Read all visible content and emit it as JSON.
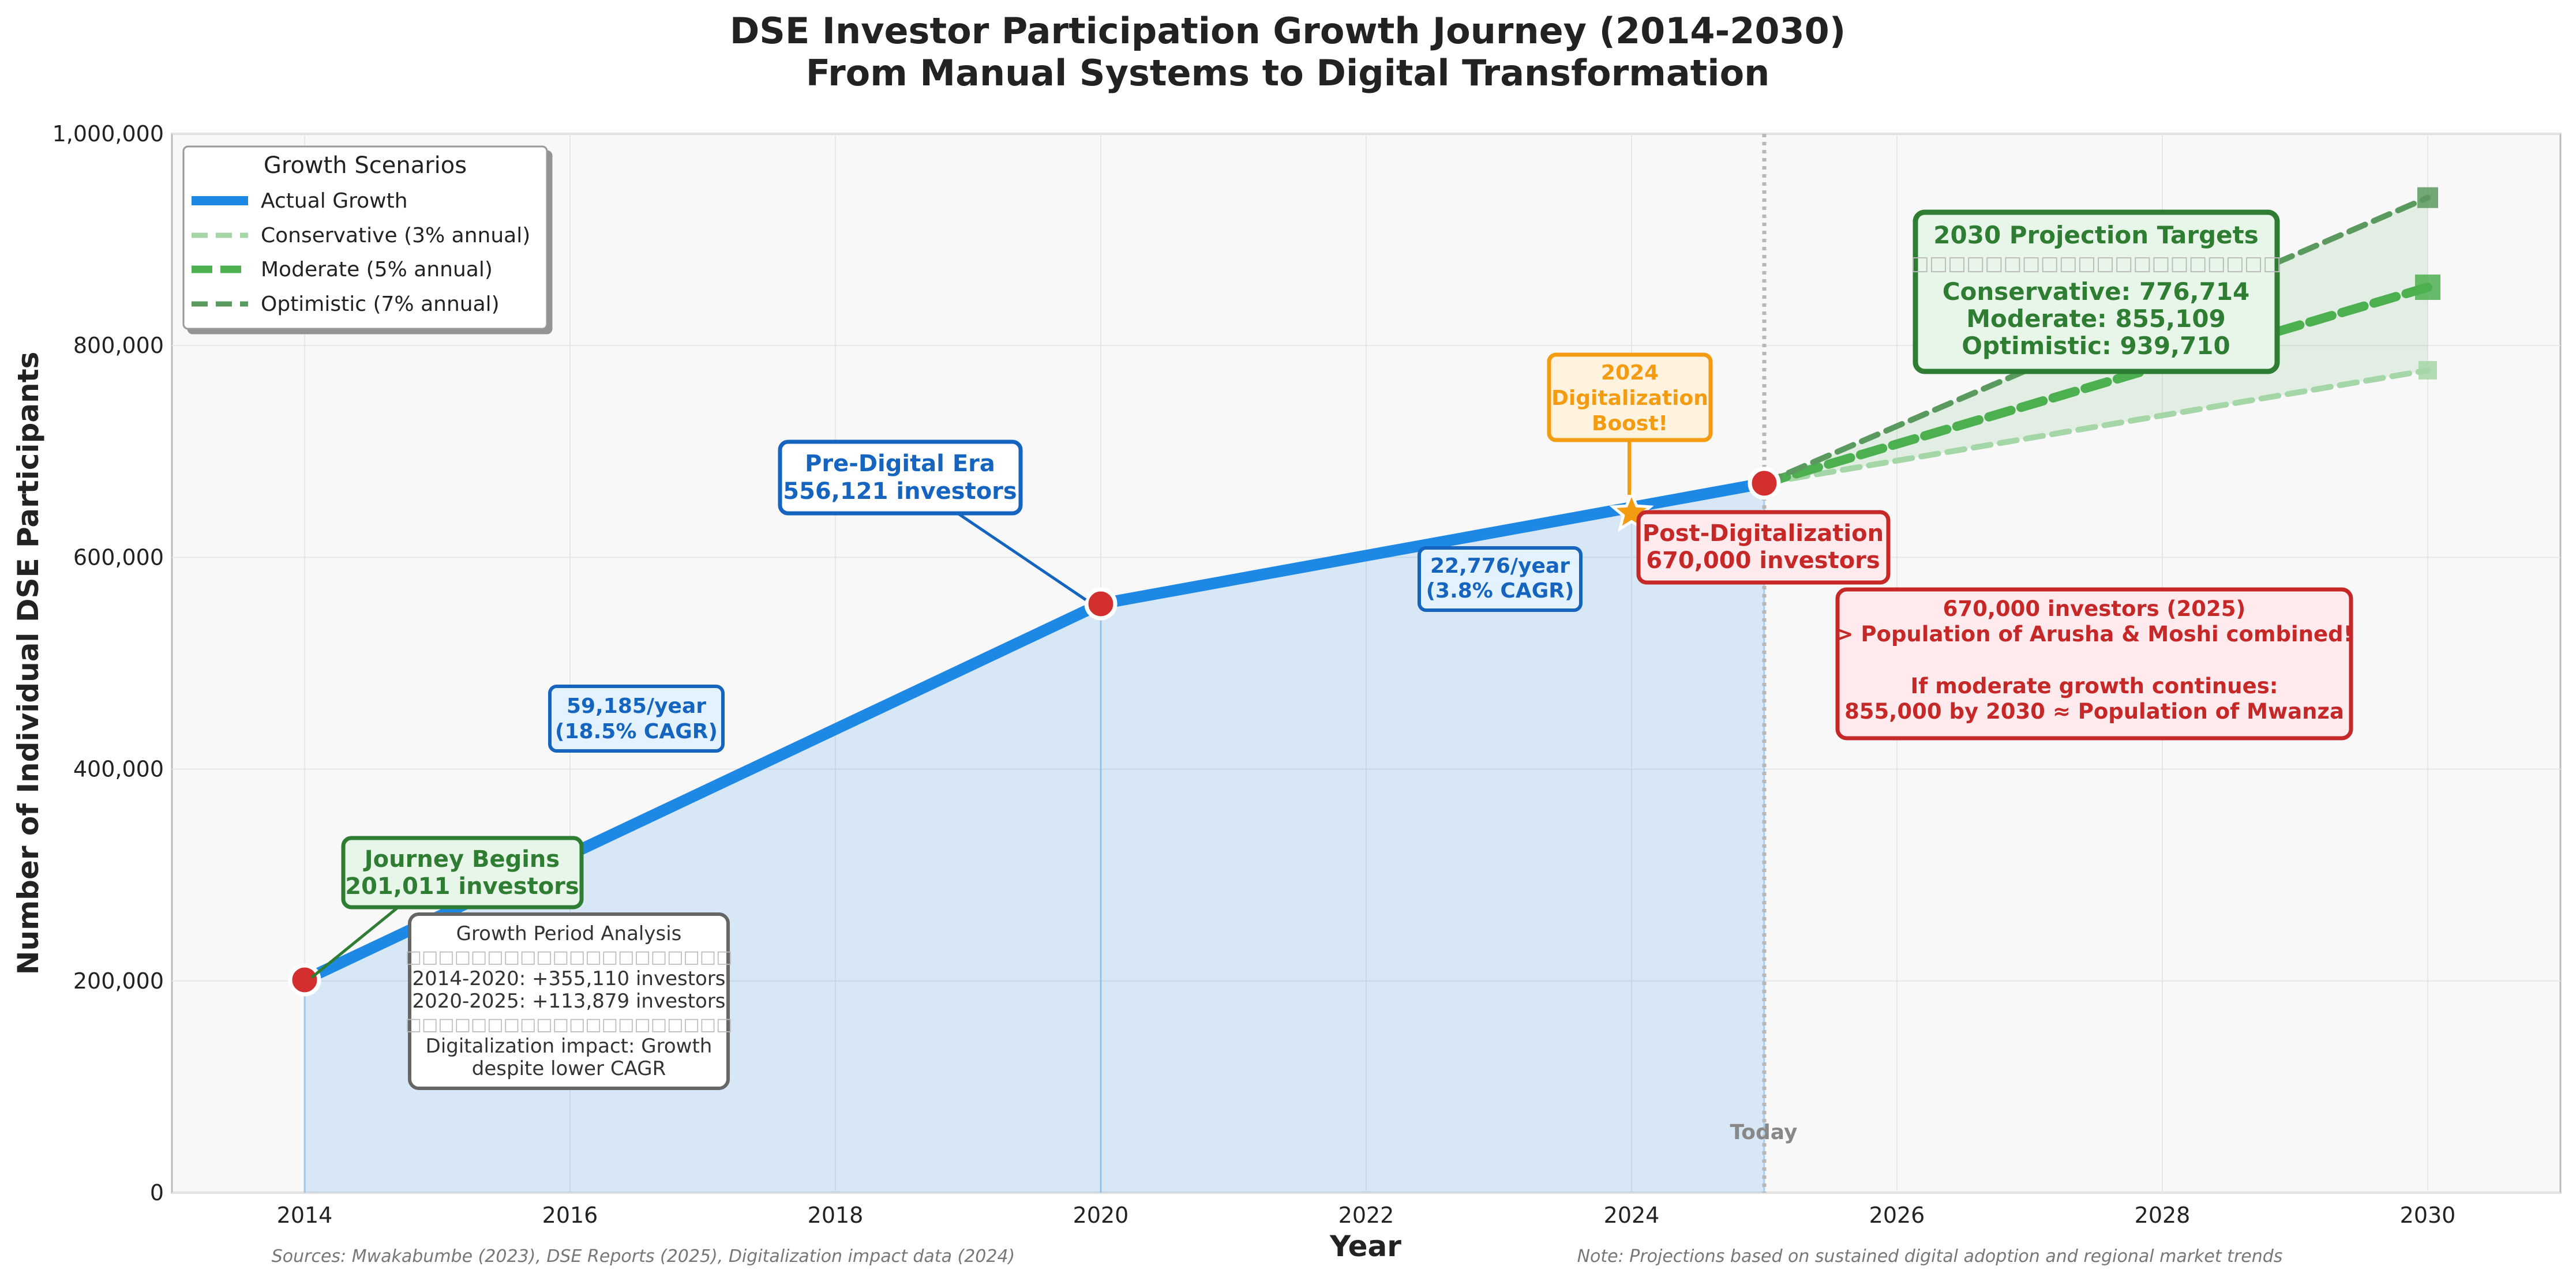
{
  "chart_data": {
    "type": "line",
    "title": "DSE Investor Participation Growth Journey (2014-2030)",
    "subtitle": "From Manual Systems to Digital Transformation",
    "xlabel": "Year",
    "ylabel": "Number of Individual DSE Participants",
    "xlim": [
      2013,
      2031
    ],
    "ylim": [
      0,
      1000000
    ],
    "x_ticks": [
      2014,
      2016,
      2018,
      2020,
      2022,
      2024,
      2026,
      2028,
      2030
    ],
    "y_ticks": [
      0,
      200000,
      400000,
      600000,
      800000,
      1000000
    ],
    "y_tick_labels": [
      "0",
      "200,000",
      "400,000",
      "600,000",
      "800,000",
      "1,000,000"
    ],
    "grid": true,
    "legend": {
      "title": "Growth Scenarios",
      "position": "top-left",
      "entries": [
        {
          "label": "Actual Growth",
          "color": "#1e88e5",
          "style": "solid"
        },
        {
          "label": "Conservative (3% annual)",
          "color": "#a5d6a7",
          "style": "dashed"
        },
        {
          "label": "Moderate (5% annual)",
          "color": "#4caf50",
          "style": "dashed"
        },
        {
          "label": "Optimistic (7% annual)",
          "color": "#5b9a5e",
          "style": "dashed"
        }
      ]
    },
    "series": [
      {
        "name": "Actual Growth",
        "color": "#1e88e5",
        "x": [
          2014,
          2020,
          2025
        ],
        "y": [
          201011,
          556121,
          670000
        ]
      },
      {
        "name": "Conservative (3% annual)",
        "color": "#a5d6a7",
        "x": [
          2025,
          2030
        ],
        "y": [
          670000,
          776714
        ]
      },
      {
        "name": "Moderate (5% annual)",
        "color": "#4caf50",
        "x": [
          2025,
          2030
        ],
        "y": [
          670000,
          855109
        ]
      },
      {
        "name": "Optimistic (7% annual)",
        "color": "#5b9a5e",
        "x": [
          2025,
          2030
        ],
        "y": [
          670000,
          939710
        ]
      }
    ],
    "milestones": [
      {
        "x": 2014,
        "y": 201011
      },
      {
        "x": 2020,
        "y": 556121
      },
      {
        "x": 2025,
        "y": 670000
      }
    ],
    "star_marker": {
      "x": 2024,
      "y": 642000,
      "color": "#f39c12"
    },
    "today_line": {
      "x": 2025,
      "label": "Today"
    },
    "annotations": {
      "journey": [
        "Journey Begins",
        "201,011 investors"
      ],
      "prefigital": [
        "Pre-Digital Era",
        "556,121 investors"
      ],
      "digital_boost": [
        "2024",
        "Digitalization",
        "Boost!"
      ],
      "post_digital": [
        "Post-Digitalization",
        "670,000 investors"
      ],
      "rate1": [
        "59,185/year",
        "(18.5% CAGR)"
      ],
      "rate2": [
        "22,776/year",
        "(3.8% CAGR)"
      ],
      "projection_box": {
        "title": "2030 Projection Targets",
        "divider": "□□□□□□□□□□□□□□□□□□□□",
        "lines": [
          "Conservative: 776,714",
          "Moderate: 855,109",
          "Optimistic: 939,710"
        ]
      },
      "comparison_box": [
        "670,000 investors (2025)",
        "> Population of Arusha & Moshi combined!",
        "",
        "If moderate growth continues:",
        "855,000 by 2030 ≈ Population of Mwanza"
      ],
      "period_box": {
        "title": "Growth Period Analysis",
        "divider": "□□□□□□□□□□□□□□□□□□□□",
        "lines": [
          "2014-2020: +355,110 investors",
          "2020-2025: +113,879 investors"
        ],
        "divider2": "□□□□□□□□□□□□□□□□□□□□",
        "tail": [
          "Digitalization impact: Growth",
          "despite lower CAGR"
        ]
      }
    },
    "footnotes": {
      "left": "Sources: Mwakabumbe (2023), DSE Reports (2025), Digitalization impact data (2024)",
      "right": "Note: Projections based on sustained digital adoption and regional market trends"
    }
  }
}
